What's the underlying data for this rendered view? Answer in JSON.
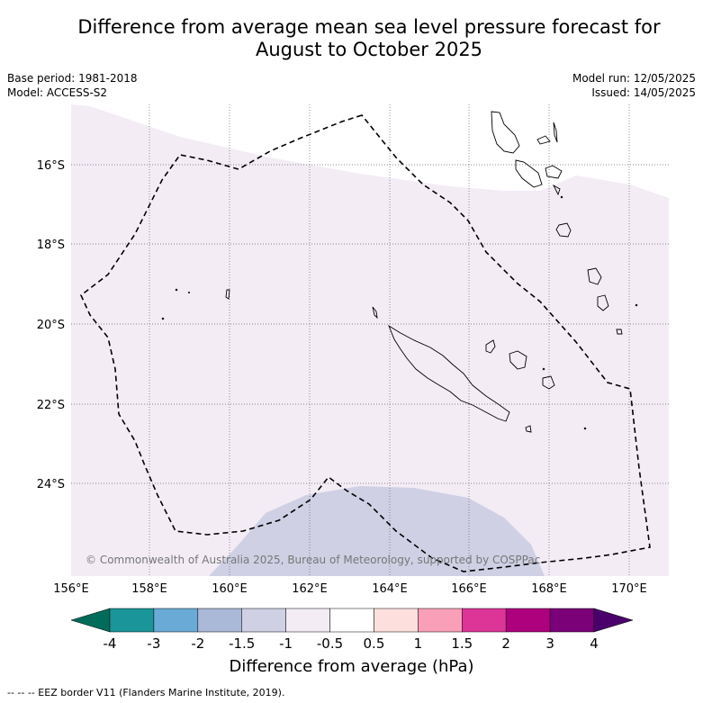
{
  "header": {
    "title_line1": "Difference from average mean sea level pressure forecast for",
    "title_line2": "August to October 2025"
  },
  "meta": {
    "base_period": "Base period: 1981-2018",
    "model": "Model: ACCESS-S2",
    "model_run": "Model run: 12/05/2025",
    "issued": "Issued: 14/05/2025"
  },
  "map": {
    "copyright": "© Commonwealth of Australia 2025, Bureau of Meteorology, supported by COSPPac",
    "lat_labels": [
      "16°S",
      "18°S",
      "20°S",
      "22°S",
      "24°S"
    ],
    "lon_labels": [
      "156°E",
      "158°E",
      "160°E",
      "162°E",
      "164°E",
      "166°E",
      "168°E",
      "170°E"
    ],
    "extent": {
      "lon": [
        156,
        171
      ],
      "lat": [
        -14.5,
        -26.3
      ]
    },
    "fill_colors": {
      "-1 to -0.5": "#f3ecf5",
      "-1.5 to -1": "#cfd0e4"
    }
  },
  "colorbar": {
    "title": "Difference from average (hPa)",
    "ticks": [
      "-4",
      "-3",
      "-2",
      "-1.5",
      "-1",
      "-0.5",
      "0.5",
      "1",
      "1.5",
      "2",
      "3",
      "4"
    ],
    "colors": [
      "#1a9599",
      "#6aaad6",
      "#aab9d8",
      "#cfd0e4",
      "#f3ecf5",
      "#ffffff",
      "#fde0dd",
      "#f9a0b8",
      "#dc3597",
      "#ad017e",
      "#7a0177"
    ],
    "under_color": "#016c59",
    "over_color": "#49006a"
  },
  "footer": {
    "legend": "--  --  -- EEZ border V11 (Flanders Marine Institute, 2019)."
  }
}
